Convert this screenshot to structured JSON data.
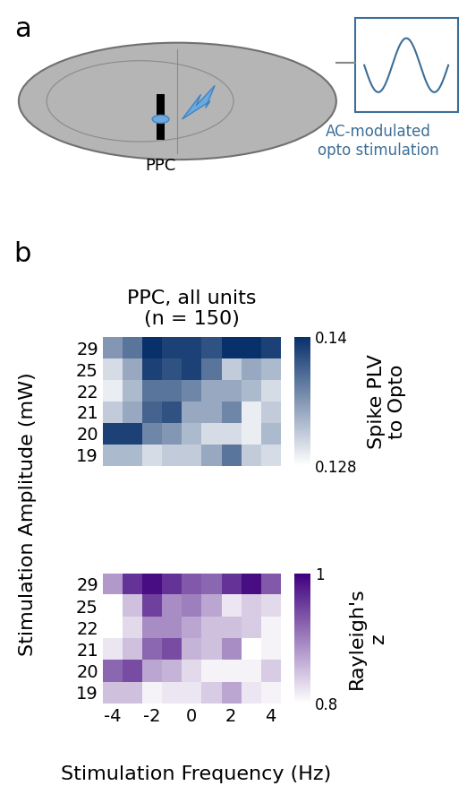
{
  "panels": {
    "a": {
      "label": "a",
      "region": "PPC",
      "stimulus_text": [
        "AC-modulated",
        "opto stimulation"
      ]
    },
    "b": {
      "label": "b",
      "title": [
        "PPC, all units",
        "(n = 150)"
      ],
      "ylabel": "Stimulation Amplitude (mW)",
      "xlabel": "Stimulation Frequency (Hz)"
    }
  },
  "chart_data": [
    {
      "type": "heatmap",
      "tick_labels": "y",
      "x": [
        -4,
        -3,
        -2,
        -1,
        0,
        1,
        2,
        3,
        4
      ],
      "xlim": [
        -4.5,
        4.5
      ],
      "xticks": [
        -4,
        -2,
        0,
        2,
        4
      ],
      "categories": [
        "19",
        "20",
        "21",
        "22",
        "25",
        "29"
      ],
      "color": "#08306b",
      "cells": [
        [
          0.132,
          0.132,
          0.13,
          0.131,
          0.131,
          0.133,
          0.136,
          0.131,
          0.13
        ],
        [
          0.139,
          0.139,
          0.135,
          0.134,
          0.132,
          0.13,
          0.13,
          0.129,
          0.132
        ],
        [
          0.131,
          0.133,
          0.137,
          0.138,
          0.133,
          0.133,
          0.135,
          0.129,
          0.131
        ],
        [
          0.129,
          0.132,
          0.136,
          0.136,
          0.135,
          0.133,
          0.133,
          0.132,
          0.13
        ],
        [
          0.13,
          0.133,
          0.139,
          0.138,
          0.139,
          0.136,
          0.131,
          0.133,
          0.132
        ],
        [
          0.134,
          0.136,
          0.14,
          0.139,
          0.139,
          0.138,
          0.14,
          0.14,
          0.139
        ]
      ],
      "colorbar_label": [
        "Spike PLV",
        "to Opto"
      ],
      "colorbar_range": [
        0.128,
        0.14
      ],
      "colorbar_ticks": [
        0.128,
        0.14
      ]
    },
    {
      "type": "heatmap",
      "x": [
        -4,
        -3,
        -2,
        -1,
        0,
        1,
        2,
        3,
        4
      ],
      "xlim": [
        -4.5,
        4.5
      ],
      "xticks": [
        -4,
        -2,
        0,
        2,
        4
      ],
      "categories": [
        "19",
        "20",
        "21",
        "22",
        "25",
        "29"
      ],
      "color": "#3f007d",
      "cells": [
        [
          0.85,
          0.85,
          0.81,
          0.82,
          0.82,
          0.84,
          0.87,
          0.82,
          0.81
        ],
        [
          0.92,
          0.94,
          0.87,
          0.86,
          0.83,
          0.81,
          0.81,
          0.81,
          0.84
        ],
        [
          0.82,
          0.85,
          0.92,
          0.94,
          0.86,
          0.85,
          0.89,
          0.8,
          0.81
        ],
        [
          0.8,
          0.83,
          0.89,
          0.89,
          0.87,
          0.85,
          0.85,
          0.84,
          0.81
        ],
        [
          0.8,
          0.85,
          0.95,
          0.89,
          0.9,
          0.87,
          0.82,
          0.84,
          0.83
        ],
        [
          0.88,
          0.96,
          0.99,
          0.96,
          0.93,
          0.92,
          0.96,
          0.99,
          0.93
        ]
      ],
      "colorbar_label": [
        "Rayleigh's",
        "z"
      ],
      "colorbar_range": [
        0.8,
        1
      ],
      "colorbar_ticks": [
        0.8,
        1
      ]
    }
  ]
}
